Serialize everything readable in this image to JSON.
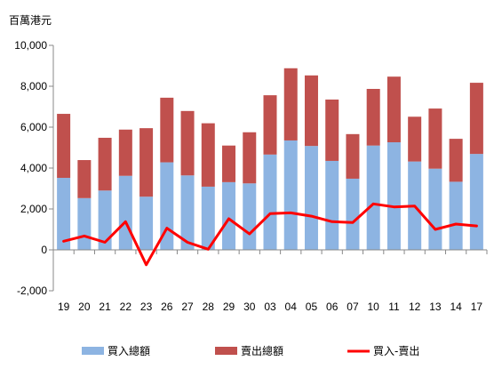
{
  "chart_data": {
    "type": "bar",
    "title": "",
    "unit_label": "百萬港元",
    "xlabel": "",
    "ylabel": "",
    "ylim": [
      -2000,
      10000
    ],
    "yticks": [
      "-2,000",
      "0",
      "2,000",
      "4,000",
      "6,000",
      "8,000",
      "10,000"
    ],
    "ytick_values": [
      -2000,
      0,
      2000,
      4000,
      6000,
      8000,
      10000
    ],
    "categories": [
      "19",
      "20",
      "21",
      "22",
      "23",
      "26",
      "27",
      "28",
      "29",
      "30",
      "03",
      "04",
      "05",
      "06",
      "07",
      "10",
      "11",
      "12",
      "13",
      "14",
      "17"
    ],
    "stacked": true,
    "grid": false,
    "legend_position": "bottom",
    "series": [
      {
        "name": "買入總額",
        "kind": "bar",
        "color": "#8db4e2",
        "values": [
          3520,
          2530,
          2900,
          3620,
          2600,
          4280,
          3640,
          3090,
          3310,
          3250,
          4660,
          5350,
          5080,
          4350,
          3480,
          5100,
          5260,
          4320,
          3970,
          3330,
          4690
        ]
      },
      {
        "name": "賣出總額",
        "kind": "bar",
        "color": "#c0504d",
        "values": [
          3130,
          1860,
          2580,
          2260,
          3350,
          3160,
          3150,
          3100,
          1790,
          2500,
          2900,
          3530,
          3450,
          3000,
          2180,
          2770,
          3210,
          2190,
          2940,
          2100,
          3480
        ]
      },
      {
        "name": "買入-賣出",
        "kind": "line",
        "color": "#ff0000",
        "values": [
          420,
          680,
          370,
          1380,
          -730,
          1060,
          370,
          30,
          1520,
          780,
          1770,
          1810,
          1650,
          1380,
          1340,
          2250,
          2100,
          2140,
          1000,
          1260,
          1170
        ]
      }
    ]
  }
}
